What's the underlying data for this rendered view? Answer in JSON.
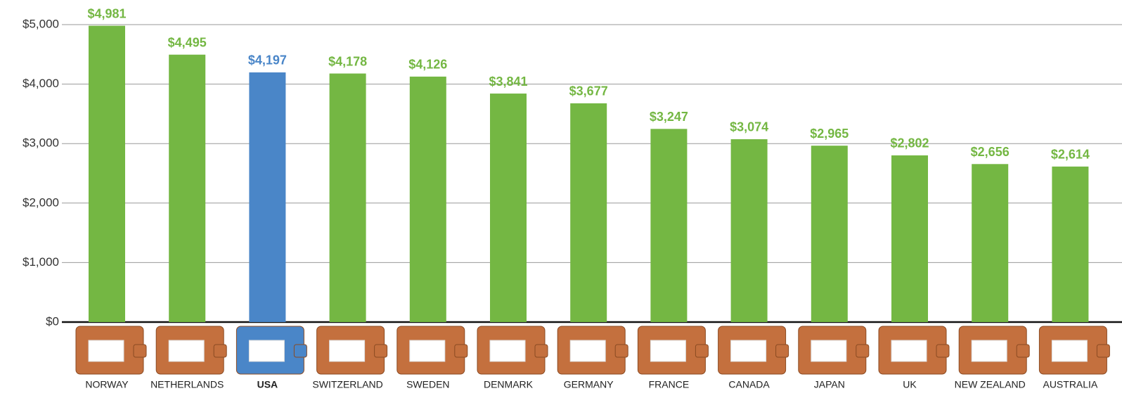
{
  "chart_data": {
    "type": "bar",
    "categories": [
      "NORWAY",
      "NETHERLANDS",
      "USA",
      "SWITZERLAND",
      "SWEDEN",
      "DENMARK",
      "GERMANY",
      "FRANCE",
      "CANADA",
      "JAPAN",
      "UK",
      "NEW ZEALAND",
      "AUSTRALIA"
    ],
    "values": [
      4981,
      4495,
      4197,
      4178,
      4126,
      3841,
      3677,
      3247,
      3074,
      2965,
      2802,
      2656,
      2614
    ],
    "value_labels": [
      "$4,981",
      "$4,495",
      "$4,197",
      "$4,178",
      "$4,126",
      "$3,841",
      "$3,677",
      "$3,247",
      "$3,074",
      "$2,965",
      "$2,802",
      "$2,656",
      "$2,614"
    ],
    "colors": [
      "#74b743",
      "#74b743",
      "#4a86c8",
      "#74b743",
      "#74b743",
      "#74b743",
      "#74b743",
      "#74b743",
      "#74b743",
      "#74b743",
      "#74b743",
      "#74b743",
      "#74b743"
    ],
    "ylim": [
      0,
      5000
    ],
    "yticks": [
      {
        "value": 0,
        "label": "$0"
      },
      {
        "value": 1000,
        "label": "$1,000"
      },
      {
        "value": 2000,
        "label": "$2,000"
      },
      {
        "value": 3000,
        "label": "$3,000"
      },
      {
        "value": 4000,
        "label": "$4,000"
      },
      {
        "value": 5000,
        "label": "$5,000"
      }
    ],
    "grid": true
  }
}
